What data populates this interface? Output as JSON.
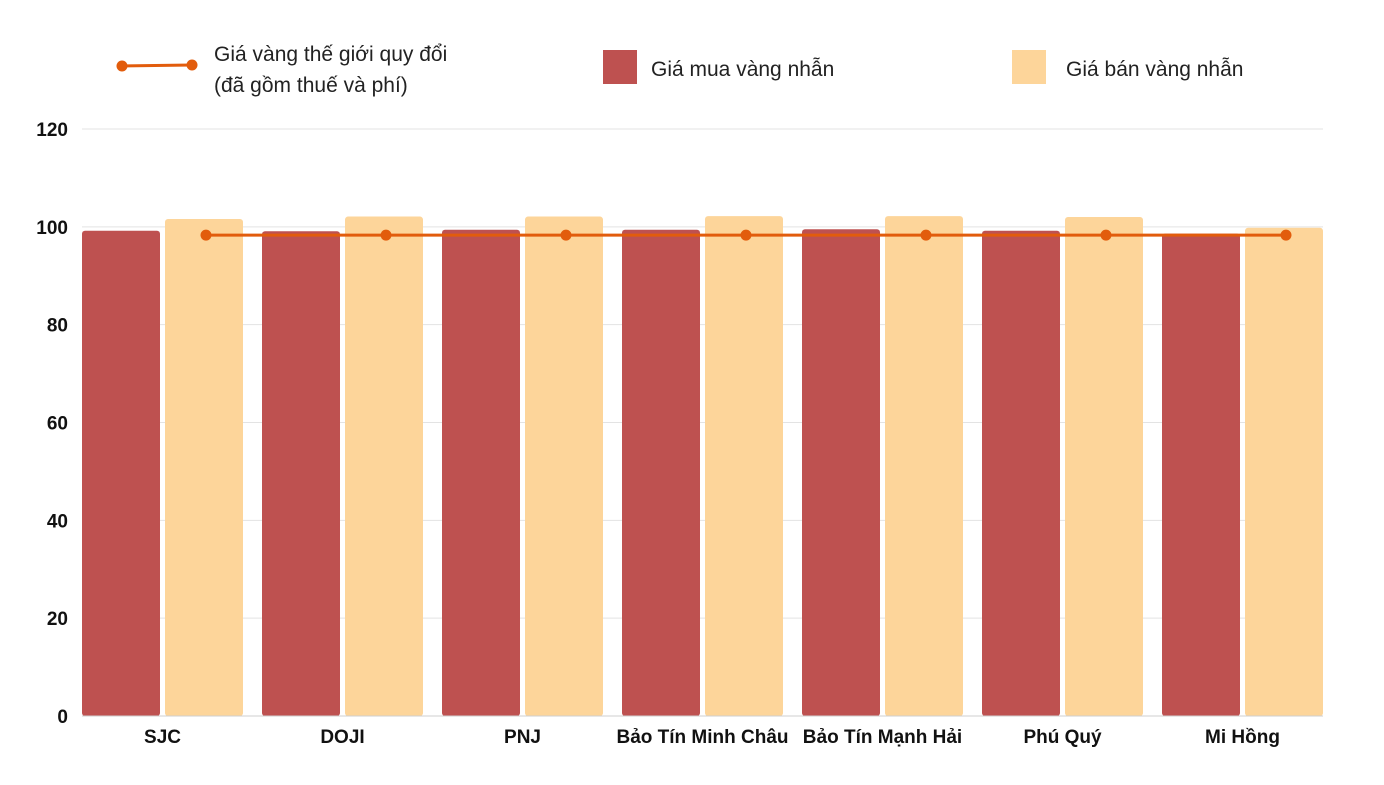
{
  "chart_data": {
    "type": "bar",
    "title": "",
    "xlabel": "",
    "ylabel": "",
    "ylim": [
      0,
      120
    ],
    "yticks": [
      0,
      20,
      40,
      60,
      80,
      100,
      120
    ],
    "grid": true,
    "legend_position": "top",
    "categories": [
      "SJC",
      "DOJI",
      "PNJ",
      "Bảo Tín Minh Châu",
      "Bảo Tín Mạnh Hải",
      "Phú Quý",
      "Mi Hồng"
    ],
    "series": [
      {
        "name": "Giá mua vàng nhẫn",
        "kind": "bar",
        "color": "#be5150",
        "values": [
          99.2,
          99.1,
          99.4,
          99.4,
          99.5,
          99.2,
          98.6
        ]
      },
      {
        "name": "Giá bán vàng nhẫn",
        "kind": "bar",
        "color": "#fdd59a",
        "values": [
          101.6,
          102.1,
          102.1,
          102.2,
          102.2,
          102.0,
          99.8
        ]
      },
      {
        "name_line1": "Giá vàng thế giới quy đổi",
        "name_line2": "(đã gồm thuế và phí)",
        "kind": "line",
        "color": "#e25c0c",
        "values": [
          98.3,
          98.3,
          98.3,
          98.3,
          98.3,
          98.3,
          98.3
        ]
      }
    ]
  }
}
